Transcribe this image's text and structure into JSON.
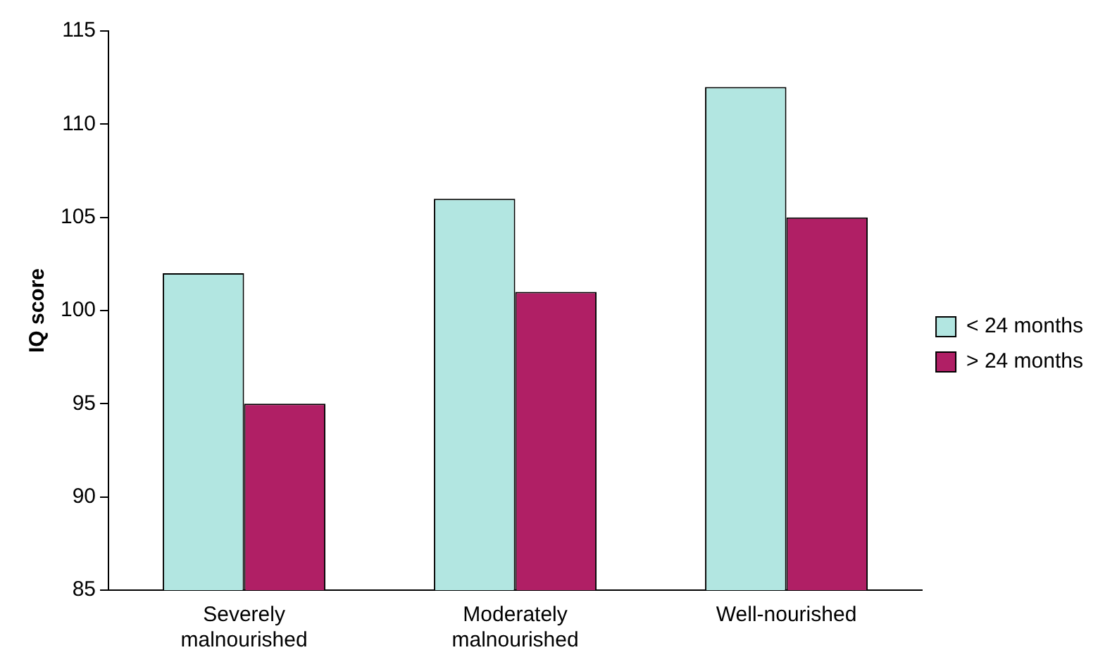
{
  "chart_data": {
    "type": "bar",
    "ylabel": "IQ score",
    "categories": [
      "Severely malnourished",
      "Moderately malnourished",
      "Well-nourished"
    ],
    "series": [
      {
        "name": "< 24 months",
        "color": "#b2e6e1",
        "values": [
          102,
          106,
          112
        ]
      },
      {
        "name": "> 24 months",
        "color": "#b01f65",
        "values": [
          95,
          101,
          105
        ]
      }
    ],
    "ylim": [
      85,
      115
    ],
    "yticks": [
      85,
      90,
      95,
      100,
      105,
      110,
      115
    ],
    "grid": false,
    "legend": "right"
  }
}
